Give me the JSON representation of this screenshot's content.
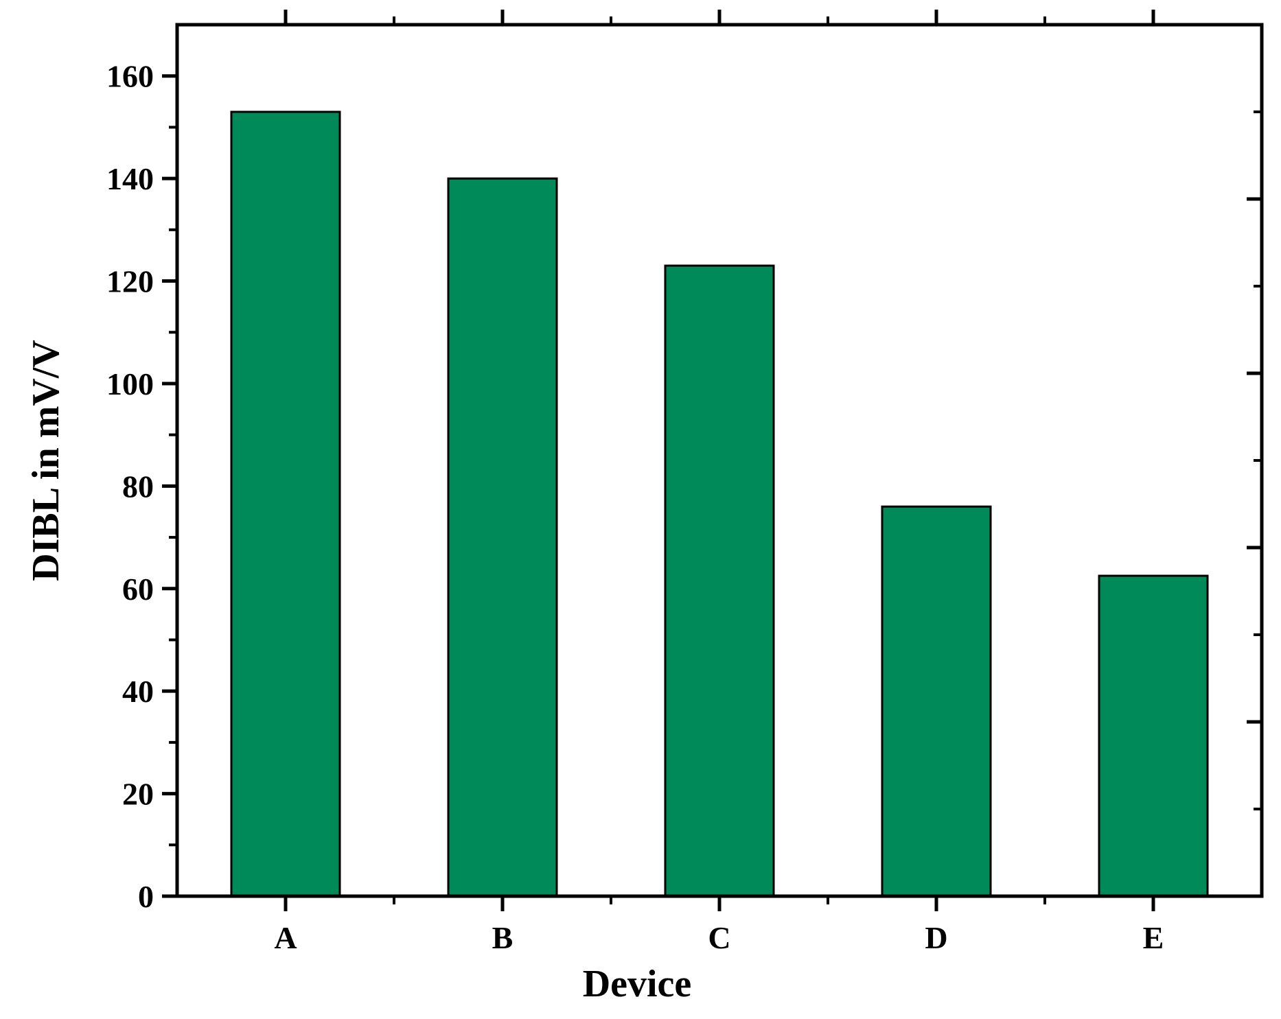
{
  "chart_data": {
    "type": "bar",
    "categories": [
      "A",
      "B",
      "C",
      "D",
      "E"
    ],
    "series": [
      {
        "values": [
          153,
          140,
          123,
          76,
          62.5
        ],
        "color": "#008a5a"
      }
    ],
    "xlabel": "Device",
    "ylabel": "DIBL in mV/V",
    "ylim": [
      0,
      170
    ],
    "yticks": [
      0,
      20,
      40,
      60,
      80,
      100,
      120,
      140,
      160
    ],
    "ytick_labels": [
      "0",
      "20",
      "40",
      "60",
      "80",
      "100",
      "120",
      "140",
      "160"
    ],
    "y_minor_step": 10,
    "right_axis_ticks": true,
    "grid": false,
    "legend": "none",
    "bar_edge_color": "#000000"
  }
}
